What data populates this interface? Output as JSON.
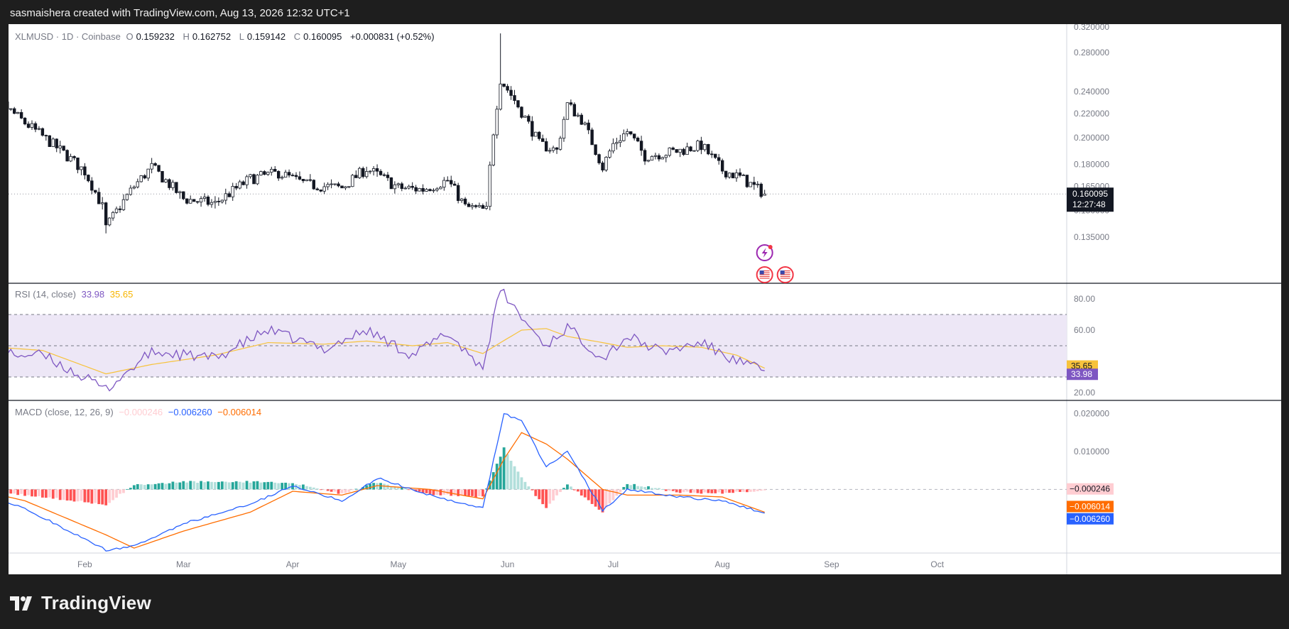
{
  "attribution": "sasmaishera created with TradingView.com, Aug 13, 2026 12:32 UTC+1",
  "brand": "TradingView",
  "colors": {
    "up": "#ffffff",
    "down": "#131722",
    "wick": "#131722",
    "rsi": "#7e57c2",
    "rsi_ma": "#f7c33c",
    "rsi_band": "#ede7f6",
    "macd": "#2962ff",
    "signal": "#ff6d00",
    "hist_pos_strong": "#26a69a",
    "hist_pos_weak": "#b2dfdb",
    "hist_neg_strong": "#ff5252",
    "hist_neg_weak": "#ffcdd2"
  },
  "header": {
    "symbol": "XLMUSD · 1D · Coinbase",
    "o_label": "O",
    "o": "0.159232",
    "h_label": "H",
    "h": "0.162752",
    "l_label": "L",
    "l": "0.159142",
    "c_label": "C",
    "c": "0.160095",
    "change": "+0.000831 (+0.52%)"
  },
  "price_badge": {
    "price": "0.160095",
    "countdown": "12:27:48"
  },
  "rsi_legend": {
    "name": "RSI (14, close)",
    "rsi": "33.98",
    "ma": "35.65"
  },
  "macd_legend": {
    "name": "MACD (close, 12, 26, 9)",
    "hist": "−0.000246",
    "macd": "−0.006260",
    "signal": "−0.006014"
  },
  "price_axis": [
    "0.320000",
    "0.280000",
    "0.240000",
    "0.220000",
    "0.200000",
    "0.180000",
    "0.165000",
    "0.150000",
    "0.135000"
  ],
  "rsi_axis": [
    "80.00",
    "60.00",
    "20.00"
  ],
  "rsi_badges": {
    "ma": "35.65",
    "rsi": "33.98"
  },
  "macd_axis": [
    "0.020000",
    "0.010000"
  ],
  "macd_badges": {
    "hist": "−0.000246",
    "signal": "−0.006014",
    "macd": "−0.006260"
  },
  "time_axis": [
    "Feb",
    "Mar",
    "Apr",
    "May",
    "Jun",
    "Jul",
    "Aug",
    "Sep",
    "Oct"
  ],
  "chart_data": {
    "type": "candlestick",
    "symbol": "XLMUSD",
    "interval": "1D",
    "exchange": "Coinbase",
    "ylim": [
      0.13,
      0.33
    ],
    "scale": "log",
    "key_points": [
      {
        "date": "Jan 01",
        "close": 0.228
      },
      {
        "date": "Jan 03",
        "close": 0.242
      },
      {
        "date": "Jan 15",
        "close": 0.212
      },
      {
        "date": "Feb 01",
        "close": 0.175
      },
      {
        "date": "Feb 06",
        "close": 0.152
      },
      {
        "date": "Feb 07",
        "close": 0.14
      },
      {
        "date": "Feb 15",
        "close": 0.165
      },
      {
        "date": "Feb 20",
        "close": 0.178
      },
      {
        "date": "Mar 01",
        "close": 0.157
      },
      {
        "date": "Mar 10",
        "close": 0.154
      },
      {
        "date": "Mar 20",
        "close": 0.17
      },
      {
        "date": "Mar 28",
        "close": 0.174
      },
      {
        "date": "Apr 05",
        "close": 0.166
      },
      {
        "date": "Apr 15",
        "close": 0.164
      },
      {
        "date": "Apr 22",
        "close": 0.177
      },
      {
        "date": "May 01",
        "close": 0.164
      },
      {
        "date": "May 08",
        "close": 0.163
      },
      {
        "date": "May 15",
        "close": 0.169
      },
      {
        "date": "May 20",
        "close": 0.152
      },
      {
        "date": "May 26",
        "close": 0.15
      },
      {
        "date": "May 28",
        "close": 0.205
      },
      {
        "date": "May 30",
        "close": 0.252
      },
      {
        "date": "Jun 03",
        "close": 0.232
      },
      {
        "date": "Jun 10",
        "close": 0.195
      },
      {
        "date": "Jun 15",
        "close": 0.19
      },
      {
        "date": "Jun 18",
        "close": 0.228
      },
      {
        "date": "Jun 22",
        "close": 0.215
      },
      {
        "date": "Jun 28",
        "close": 0.178
      },
      {
        "date": "Jul 01",
        "close": 0.195
      },
      {
        "date": "Jul 05",
        "close": 0.205
      },
      {
        "date": "Jul 10",
        "close": 0.186
      },
      {
        "date": "Jul 20",
        "close": 0.19
      },
      {
        "date": "Jul 26",
        "close": 0.194
      },
      {
        "date": "Aug 01",
        "close": 0.176
      },
      {
        "date": "Aug 06",
        "close": 0.171
      },
      {
        "date": "Aug 13",
        "close": 0.160095
      }
    ],
    "rsi": {
      "levels": [
        70,
        50,
        30
      ],
      "ylim": [
        15,
        90
      ],
      "key_points": [
        {
          "date": "Jan 01",
          "rsi": 45,
          "ma": 50
        },
        {
          "date": "Jan 20",
          "rsi": 44,
          "ma": 47
        },
        {
          "date": "Feb 07",
          "rsi": 22,
          "ma": 32
        },
        {
          "date": "Feb 20",
          "rsi": 46,
          "ma": 38
        },
        {
          "date": "Mar 10",
          "rsi": 42,
          "ma": 44
        },
        {
          "date": "Mar 25",
          "rsi": 60,
          "ma": 52
        },
        {
          "date": "Apr 10",
          "rsi": 48,
          "ma": 51
        },
        {
          "date": "Apr 22",
          "rsi": 60,
          "ma": 53
        },
        {
          "date": "May 05",
          "rsi": 44,
          "ma": 50
        },
        {
          "date": "May 15",
          "rsi": 58,
          "ma": 52
        },
        {
          "date": "May 25",
          "rsi": 36,
          "ma": 45
        },
        {
          "date": "May 30",
          "rsi": 86,
          "ma": 52
        },
        {
          "date": "Jun 05",
          "rsi": 68,
          "ma": 60
        },
        {
          "date": "Jun 12",
          "rsi": 50,
          "ma": 61
        },
        {
          "date": "Jun 18",
          "rsi": 62,
          "ma": 56
        },
        {
          "date": "Jun 28",
          "rsi": 42,
          "ma": 52
        },
        {
          "date": "Jul 05",
          "rsi": 56,
          "ma": 49
        },
        {
          "date": "Jul 15",
          "rsi": 46,
          "ma": 50
        },
        {
          "date": "Jul 26",
          "rsi": 52,
          "ma": 49
        },
        {
          "date": "Aug 05",
          "rsi": 40,
          "ma": 44
        },
        {
          "date": "Aug 13",
          "rsi": 33.98,
          "ma": 35.65
        }
      ]
    },
    "macd": {
      "ylim": [
        -0.0168,
        0.0235
      ],
      "key_points": [
        {
          "date": "Jan 01",
          "macd": 0.0,
          "signal": 0.0,
          "hist": 0.0
        },
        {
          "date": "Jan 15",
          "macd": -0.005,
          "signal": -0.003,
          "hist": -0.0015
        },
        {
          "date": "Feb 07",
          "macd": -0.016,
          "signal": -0.012,
          "hist": -0.004
        },
        {
          "date": "Feb 15",
          "macd": -0.015,
          "signal": -0.0155,
          "hist": 0.0012
        },
        {
          "date": "Mar 01",
          "macd": -0.009,
          "signal": -0.011,
          "hist": 0.002
        },
        {
          "date": "Mar 20",
          "macd": -0.004,
          "signal": -0.006,
          "hist": 0.002
        },
        {
          "date": "Apr 01",
          "macd": 0.001,
          "signal": -0.0005,
          "hist": 0.0018
        },
        {
          "date": "Apr 15",
          "macd": -0.003,
          "signal": -0.0015,
          "hist": -0.0012
        },
        {
          "date": "Apr 25",
          "macd": 0.003,
          "signal": 0.001,
          "hist": 0.0018
        },
        {
          "date": "May 10",
          "macd": -0.0015,
          "signal": 0.0,
          "hist": -0.0012
        },
        {
          "date": "May 25",
          "macd": -0.005,
          "signal": -0.0025,
          "hist": -0.002
        },
        {
          "date": "May 31",
          "macd": 0.02,
          "signal": 0.008,
          "hist": 0.011
        },
        {
          "date": "Jun 05",
          "macd": 0.018,
          "signal": 0.015,
          "hist": 0.003
        },
        {
          "date": "Jun 12",
          "macd": 0.006,
          "signal": 0.012,
          "hist": -0.005
        },
        {
          "date": "Jun 18",
          "macd": 0.01,
          "signal": 0.008,
          "hist": 0.0015
        },
        {
          "date": "Jun 28",
          "macd": -0.0055,
          "signal": 0.0,
          "hist": -0.006
        },
        {
          "date": "Jul 05",
          "macd": 0.0,
          "signal": -0.0015,
          "hist": 0.0015
        },
        {
          "date": "Jul 20",
          "macd": -0.002,
          "signal": -0.0015,
          "hist": -0.0008
        },
        {
          "date": "Aug 01",
          "macd": -0.003,
          "signal": -0.002,
          "hist": -0.001
        },
        {
          "date": "Aug 13",
          "macd": -0.00626,
          "signal": -0.006014,
          "hist": -0.000246
        }
      ]
    }
  }
}
